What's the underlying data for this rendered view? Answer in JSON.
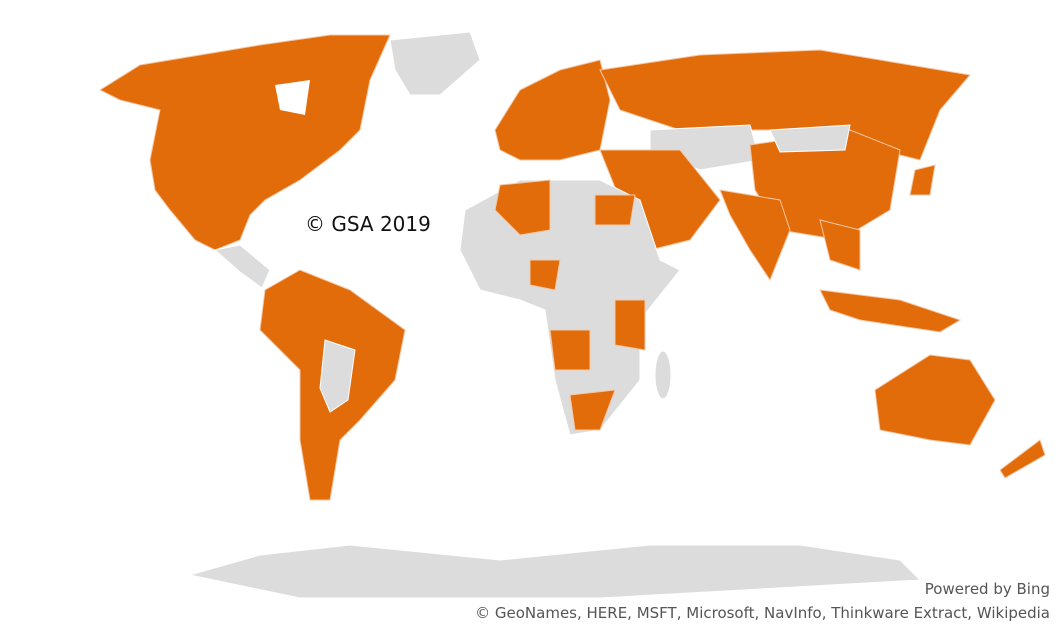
{
  "map": {
    "watermark": "© GSA 2019",
    "powered_by": "Powered by Bing",
    "attribution": "© GeoNames, HERE, MSFT, Microsoft, NavInfo, Thinkware Extract, Wikipedia"
  }
}
